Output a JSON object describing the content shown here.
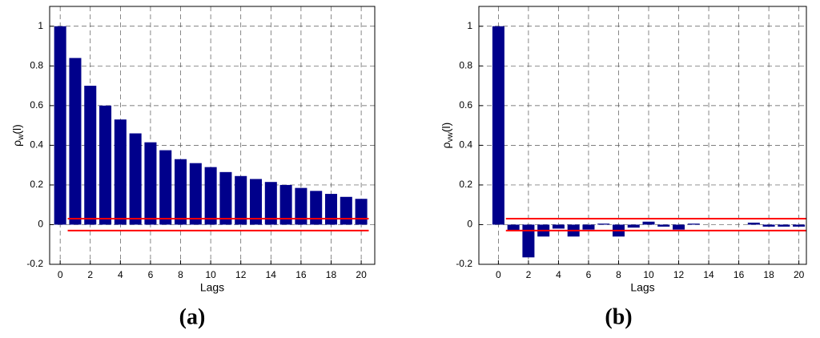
{
  "chart_data": [
    {
      "type": "bar",
      "caption": "(a)",
      "xlabel": "Lags",
      "ylabel": {
        "main": "ρ",
        "sub": "w",
        "arg": "(l)"
      },
      "x": [
        0,
        1,
        2,
        3,
        4,
        5,
        6,
        7,
        8,
        9,
        10,
        11,
        12,
        13,
        14,
        15,
        16,
        17,
        18,
        19,
        20
      ],
      "values": [
        1,
        0.84,
        0.7,
        0.6,
        0.53,
        0.46,
        0.415,
        0.375,
        0.33,
        0.31,
        0.29,
        0.265,
        0.245,
        0.23,
        0.215,
        0.2,
        0.185,
        0.17,
        0.155,
        0.14,
        0.13
      ],
      "color": "#00008b",
      "confidence_bounds": [
        0.03,
        -0.03
      ],
      "bounds_xrange": [
        0.5,
        20.5
      ],
      "bounds_color": "#ff0000",
      "xlim": [
        -0.7,
        20.9
      ],
      "ylim": [
        -0.2,
        1.1
      ],
      "xticks": [
        0,
        2,
        4,
        6,
        8,
        10,
        12,
        14,
        16,
        18,
        20
      ],
      "yticks": [
        -0.2,
        0,
        0.2,
        0.4,
        0.6,
        0.8,
        1
      ],
      "grid": true
    },
    {
      "type": "bar",
      "caption": "(b)",
      "xlabel": "Lags",
      "ylabel": {
        "main": "ρ",
        "sub": "vw",
        "arg": "(l)"
      },
      "x": [
        0,
        1,
        2,
        3,
        4,
        5,
        6,
        7,
        8,
        9,
        10,
        11,
        12,
        13,
        14,
        15,
        16,
        17,
        18,
        19,
        20
      ],
      "values": [
        1,
        -0.03,
        -0.165,
        -0.06,
        -0.02,
        -0.06,
        -0.025,
        0.005,
        -0.06,
        -0.015,
        0.015,
        -0.01,
        -0.025,
        0.005,
        0,
        0,
        0,
        0.01,
        -0.01,
        -0.01,
        -0.01
      ],
      "color": "#00008b",
      "confidence_bounds": [
        0.03,
        -0.03
      ],
      "bounds_xrange": [
        0.5,
        20.5
      ],
      "bounds_color": "#ff0000",
      "xlim": [
        -1.3,
        20.5
      ],
      "ylim": [
        -0.2,
        1.1
      ],
      "xticks": [
        0,
        2,
        4,
        6,
        8,
        10,
        12,
        14,
        16,
        18,
        20
      ],
      "yticks": [
        -0.2,
        0,
        0.2,
        0.4,
        0.6,
        0.8,
        1
      ],
      "grid": true
    }
  ]
}
